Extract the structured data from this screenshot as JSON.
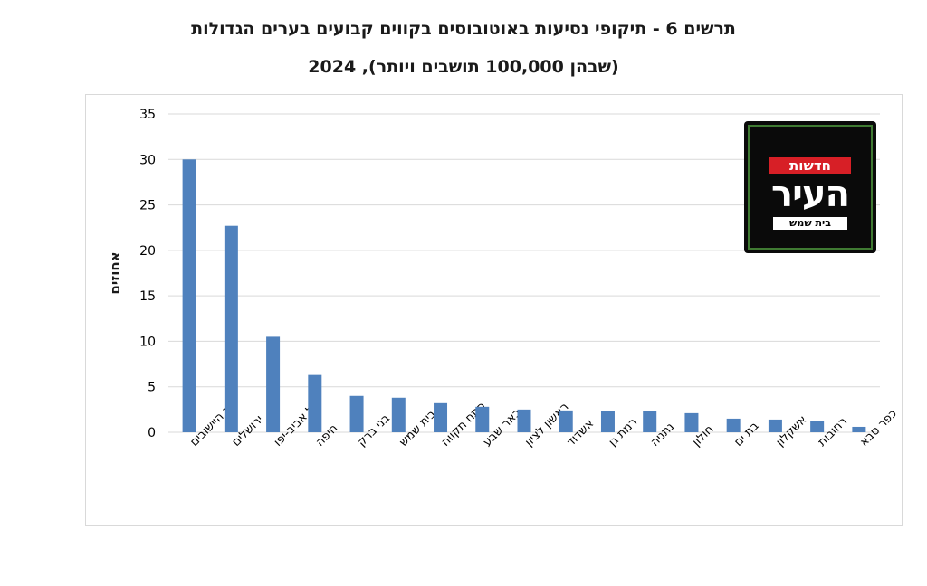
{
  "title": {
    "line1": "תרשים 6 - תיקופי נסיעות באוטובוסים בקווים קבועים בערים הגדולות",
    "line2": "(שבהן 100,000 תושבים ויותר), 2024"
  },
  "logo": {
    "top_text": "חדשות",
    "main_text": "העיר",
    "bottom_text": "בית שמש"
  },
  "colors": {
    "bar": "#4f81bd",
    "grid": "#d9d9d9",
    "axis_text": "#000000"
  },
  "chart_data": {
    "type": "bar",
    "title": "תרשים 6 - תיקופי נסיעות באוטובוסים בקווים קבועים בערים הגדולות (שבהן 100,000 תושבים ויותר), 2024",
    "xlabel": "",
    "ylabel": "אחוזים",
    "ylim": [
      0,
      35
    ],
    "yticks": [
      0,
      5,
      10,
      15,
      20,
      25,
      30,
      35
    ],
    "grid": true,
    "categories": [
      "יתר היישובים",
      "ירושלים",
      "תל אביב-יפו",
      "חיפה",
      "בני ברק",
      "בית שמש",
      "פתח תקווה",
      "באר שבע",
      "ראשון לציון",
      "אשדוד",
      "רמת גן",
      "נתניה",
      "חולון",
      "בת ים",
      "אשקלון",
      "רחובות",
      "כפר סבא"
    ],
    "values": [
      30.0,
      22.7,
      10.5,
      6.3,
      4.0,
      3.8,
      3.2,
      2.8,
      2.5,
      2.4,
      2.3,
      2.3,
      2.1,
      1.5,
      1.4,
      1.2,
      0.6
    ]
  }
}
